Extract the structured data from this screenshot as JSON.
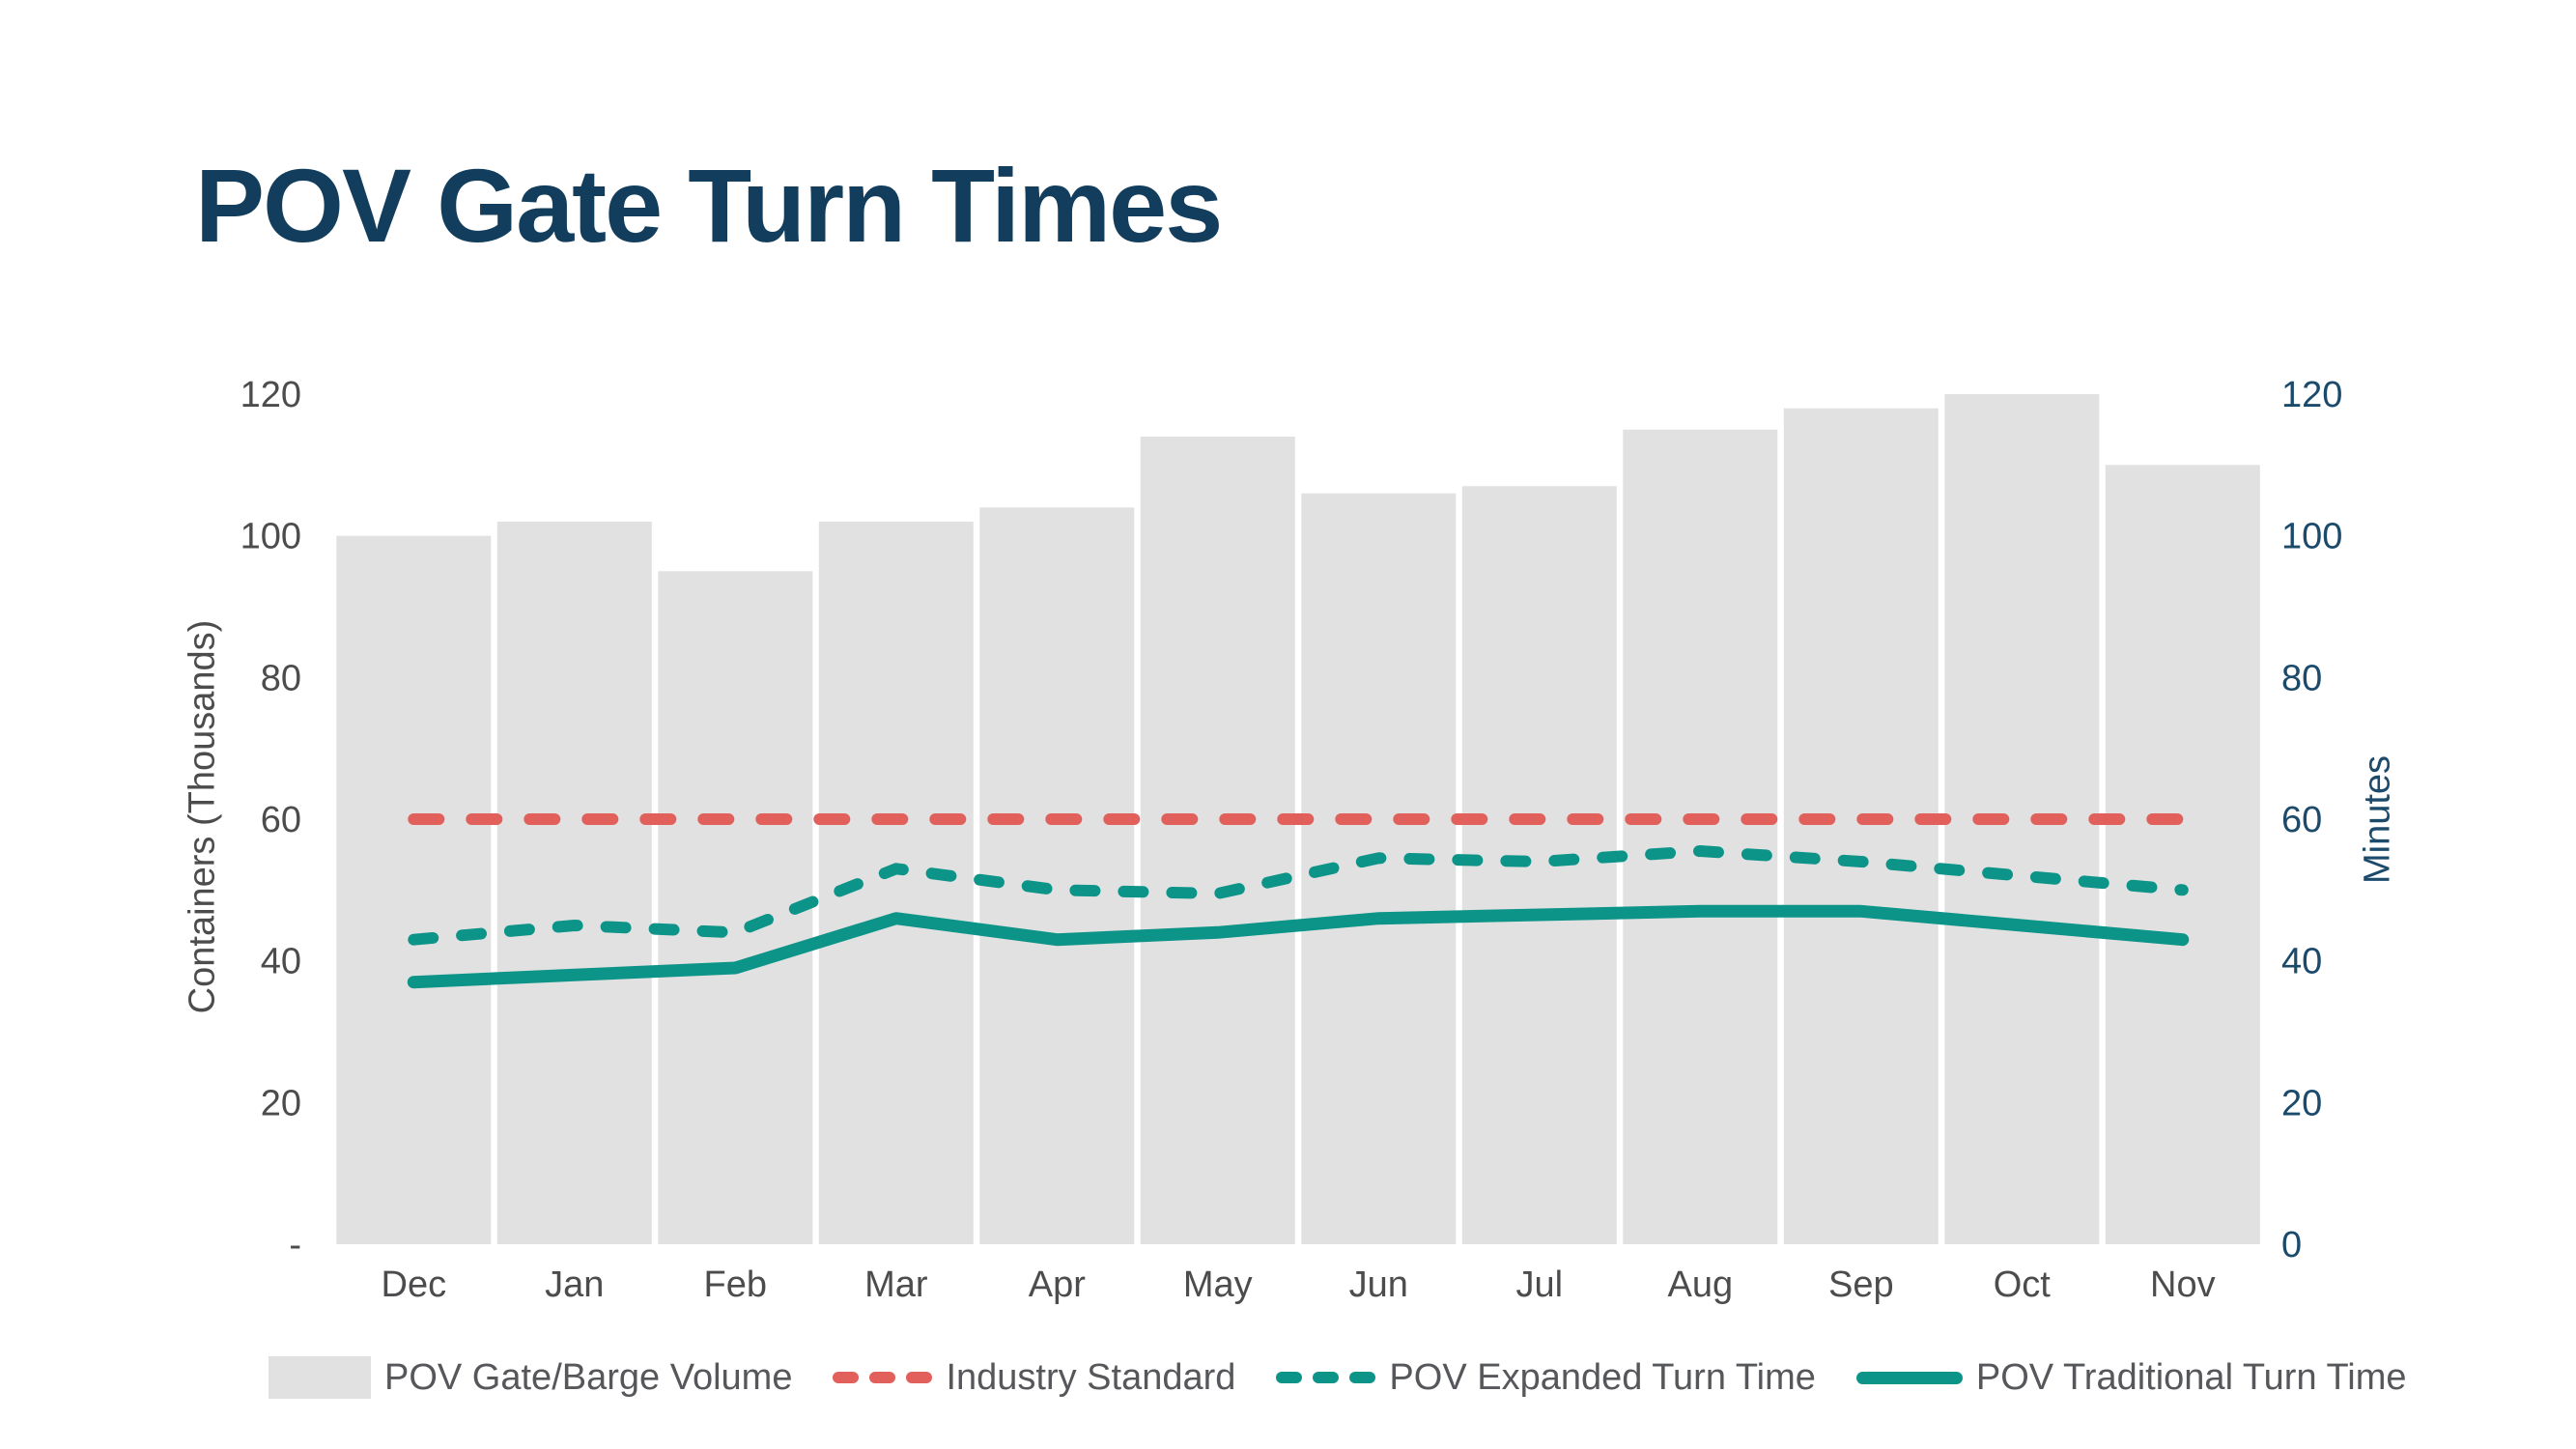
{
  "page": {
    "title_label": "POV Gate Turn Times"
  },
  "colors": {
    "background": "#FFFFFF",
    "title_text": "#123D5C",
    "left_axis_text": "#4C4C4E",
    "right_axis_text": "#1B4A6B",
    "month_label_text": "#4C4C4E",
    "legend_text": "#56575A",
    "bar_fill": "#E2E1E1",
    "industry_standard_red": "#E2605C",
    "pov_teal": "#0C9488"
  },
  "chart_data": {
    "type": "bar",
    "subtype": "combo bar + line, dual axis",
    "title": "POV Gate Turn Times",
    "categories": [
      "Dec",
      "Jan",
      "Feb",
      "Mar",
      "Apr",
      "May",
      "Jun",
      "Jul",
      "Aug",
      "Sep",
      "Oct",
      "Nov"
    ],
    "bar_series": {
      "name": "POV Gate/Barge Volume",
      "axis": "left",
      "color": "#E2E1E1",
      "values": [
        100,
        102,
        95,
        102,
        104,
        114,
        106,
        107,
        115,
        118,
        120,
        110
      ]
    },
    "line_series": [
      {
        "name": "Industry Standard",
        "style": "dashed",
        "axis": "right",
        "color": "#E2605C",
        "values": [
          60,
          60,
          60,
          60,
          60,
          60,
          60,
          60,
          60,
          60,
          60,
          60
        ]
      },
      {
        "name": "POV Expanded Turn Time",
        "style": "dashed",
        "axis": "right",
        "color": "#0C9488",
        "values": [
          43,
          45,
          44,
          53,
          50,
          49.5,
          54.5,
          54,
          55.5,
          54,
          52,
          50
        ]
      },
      {
        "name": "POV Traditional Turn Time",
        "style": "solid",
        "axis": "right",
        "color": "#0C9488",
        "values": [
          37,
          38,
          39,
          46,
          43,
          44,
          46,
          46.5,
          47,
          47,
          45,
          43
        ]
      }
    ],
    "left_axis": {
      "title": "Containers (Thousands)",
      "min": 0,
      "max": 120,
      "tick_step": 20,
      "tick_labels": [
        "-",
        "20",
        "40",
        "60",
        "80",
        "100",
        "120"
      ]
    },
    "right_axis": {
      "title": "Minutes",
      "min": 0,
      "max": 120,
      "tick_step": 20,
      "tick_labels": [
        "0",
        "20",
        "40",
        "60",
        "80",
        "100",
        "120"
      ]
    },
    "grid": false,
    "legend_position": "bottom",
    "legend": [
      {
        "label": "POV Gate/Barge Volume",
        "marker": "swatch",
        "color": "#E2E1E1"
      },
      {
        "label": "Industry Standard",
        "marker": "dashed-line",
        "color": "#E2605C"
      },
      {
        "label": "POV Expanded Turn Time",
        "marker": "dashed-line",
        "color": "#0C9488"
      },
      {
        "label": "POV Traditional Turn Time",
        "marker": "solid-line",
        "color": "#0C9488"
      }
    ]
  }
}
